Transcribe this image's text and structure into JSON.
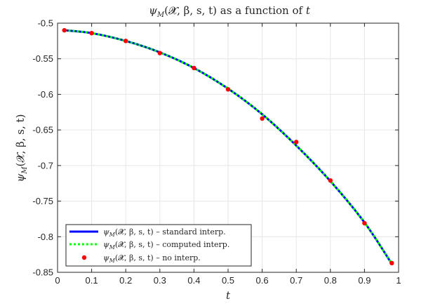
{
  "chart_data": {
    "type": "line",
    "title": "ψM(𝓧, β, s, t) as a function of t",
    "title_math": "ψ",
    "title_sub": "M",
    "title_args": "(𝓧, β, s, t)",
    "title_rest": " as a function of ",
    "title_var": "t",
    "xlabel": "t",
    "ylabel_math": "ψ",
    "ylabel_sub": "M",
    "ylabel_args": "(𝓧, β, s, t)",
    "xlim": [
      0,
      1
    ],
    "ylim": [
      -0.85,
      -0.5
    ],
    "xticks": [
      0,
      0.1,
      0.2,
      0.3,
      0.4,
      0.5,
      0.6,
      0.7,
      0.8,
      0.9,
      1
    ],
    "xtick_labels": [
      "0",
      "0.1",
      "0.2",
      "0.3",
      "0.4",
      "0.5",
      "0.6",
      "0.7",
      "0.8",
      "0.9",
      "1"
    ],
    "yticks": [
      -0.85,
      -0.8,
      -0.75,
      -0.7,
      -0.65,
      -0.6,
      -0.55,
      -0.5
    ],
    "ytick_labels": [
      "-0.85",
      "-0.8",
      "-0.75",
      "-0.7",
      "-0.65",
      "-0.6",
      "-0.55",
      "-0.5"
    ],
    "grid": true,
    "legend_position": "bottom-left",
    "series": [
      {
        "name": "ψM(𝓧, β, s, t) – standard interp.",
        "legend_sub": "M",
        "legend_rest": "(𝓧, β, s, t) – standard interp.",
        "style": "solid",
        "color": "#0000ff",
        "x": [
          0.02,
          0.1,
          0.2,
          0.3,
          0.4,
          0.5,
          0.6,
          0.7,
          0.8,
          0.9,
          0.98
        ],
        "y": [
          -0.51,
          -0.514,
          -0.525,
          -0.541,
          -0.563,
          -0.592,
          -0.628,
          -0.672,
          -0.722,
          -0.78,
          -0.838
        ]
      },
      {
        "name": "ψM(𝓧, β, s, t) – computed interp.",
        "legend_sub": "M",
        "legend_rest": "(𝓧, β, s, t) – computed interp.",
        "style": "dotted",
        "color": "#00ff00",
        "x": [
          0.02,
          0.1,
          0.2,
          0.3,
          0.4,
          0.5,
          0.6,
          0.7,
          0.8,
          0.9,
          0.98
        ],
        "y": [
          -0.51,
          -0.514,
          -0.525,
          -0.541,
          -0.563,
          -0.592,
          -0.628,
          -0.672,
          -0.722,
          -0.78,
          -0.838
        ]
      },
      {
        "name": "ψM(𝓧, β, s, t) – no interp.",
        "legend_sub": "M",
        "legend_rest": "(𝓧, β, s, t) – no interp.",
        "style": "markers",
        "color": "#ff0000",
        "x": [
          0.02,
          0.1,
          0.2,
          0.3,
          0.4,
          0.5,
          0.6,
          0.7,
          0.8,
          0.9,
          0.98
        ],
        "y": [
          -0.51,
          -0.514,
          -0.525,
          -0.542,
          -0.563,
          -0.593,
          -0.634,
          -0.667,
          -0.721,
          -0.781,
          -0.837
        ]
      }
    ]
  }
}
